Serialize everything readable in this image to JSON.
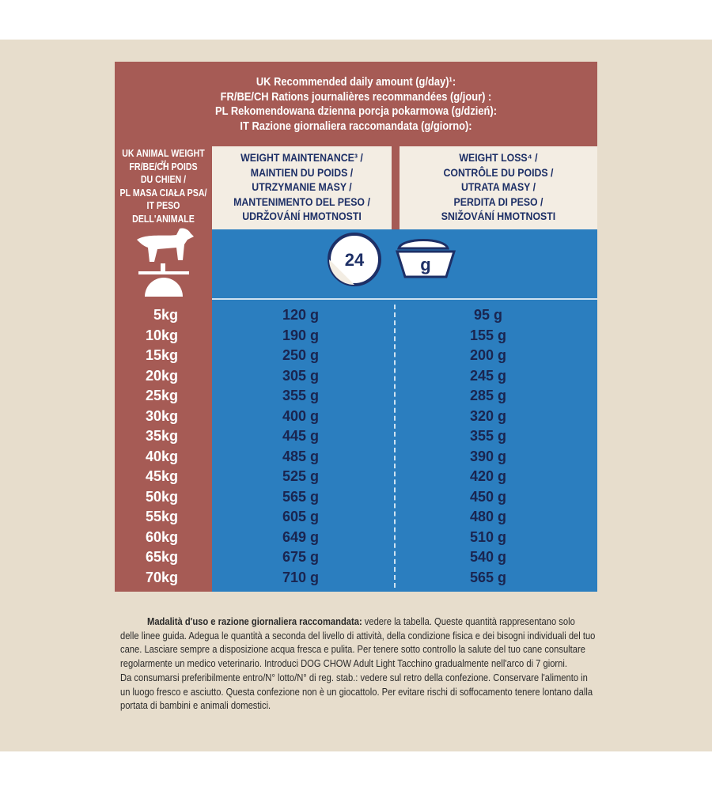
{
  "header": {
    "lines": [
      "UK Recommended daily amount (g/day)¹:",
      "FR/BE/CH Rations journalières recommandées (g/jour) :",
      "PL Rekomendowana dzienna porcja pokarmowa (g/dzień):",
      "IT Razione giornaliera raccomandata (g/giorno):"
    ]
  },
  "left_header": {
    "lines": [
      "UK ANIMAL WEIGHT ²/",
      "FR/BE/CH POIDS",
      "DU CHIEN /",
      "PL MASA CIAŁA PSA/",
      "IT PESO",
      "DELL'ANIMALE"
    ]
  },
  "columns": [
    {
      "lines": [
        "WEIGHT MAINTENANCE³ /",
        "MAINTIEN DU POIDS /",
        "UTRZYMANIE MASY /",
        "MANTENIMENTO DEL PESO /",
        "UDRŽOVÁNÍ HMOTNOSTI"
      ]
    },
    {
      "lines": [
        "WEIGHT LOSS⁴ /",
        "CONTRÔLE DU POIDS /",
        "UTRATA MASY /",
        "PERDITA DI PESO /",
        "SNIŽOVÁNÍ HMOTNOSTI"
      ]
    }
  ],
  "icons": {
    "clock": "24",
    "bowl": "g"
  },
  "rows": [
    [
      "5kg",
      "120 g",
      "95 g"
    ],
    [
      "10kg",
      "190 g",
      "155 g"
    ],
    [
      "15kg",
      "250 g",
      "200 g"
    ],
    [
      "20kg",
      "305 g",
      "245 g"
    ],
    [
      "25kg",
      "355 g",
      "285 g"
    ],
    [
      "30kg",
      "400 g",
      "320 g"
    ],
    [
      "35kg",
      "445 g",
      "355 g"
    ],
    [
      "40kg",
      "485 g",
      "390 g"
    ],
    [
      "45kg",
      "525 g",
      "420 g"
    ],
    [
      "50kg",
      "565 g",
      "450 g"
    ],
    [
      "55kg",
      "605 g",
      "480 g"
    ],
    [
      "60kg",
      "649 g",
      "510 g"
    ],
    [
      "65kg",
      "675 g",
      "540 g"
    ],
    [
      "70kg",
      "710 g",
      "565 g"
    ]
  ],
  "footer": {
    "lead": "Madalità d'uso e razione giornaliera raccomandata:",
    "lines": [
      " vedere la tabella. Queste quantità rappresentano solo",
      "delle linee guida. Adegua le quantità a seconda del livello di attività, della condizione fisica e dei bisogni individuali del tuo",
      "cane. Lasciare sempre a disposizione acqua fresca e pulita. Per tenere sotto controllo la salute del tuo cane consultare",
      "regolarmente un medico veterinario. Introduci DOG CHOW Adult Light Tacchino gradualmente nell'arco di 7 giorni.",
      "Da consumarsi preferibilmente entro/N° lotto/N° di reg. stab.: vedere sul retro della confezione. Conservare l'alimento in",
      "un luogo fresco e asciutto. Questa confezione non è un giocattolo. Per evitare rischi di soffocamento tenere lontano dalla",
      "portata di bambini e animali domestici."
    ]
  }
}
